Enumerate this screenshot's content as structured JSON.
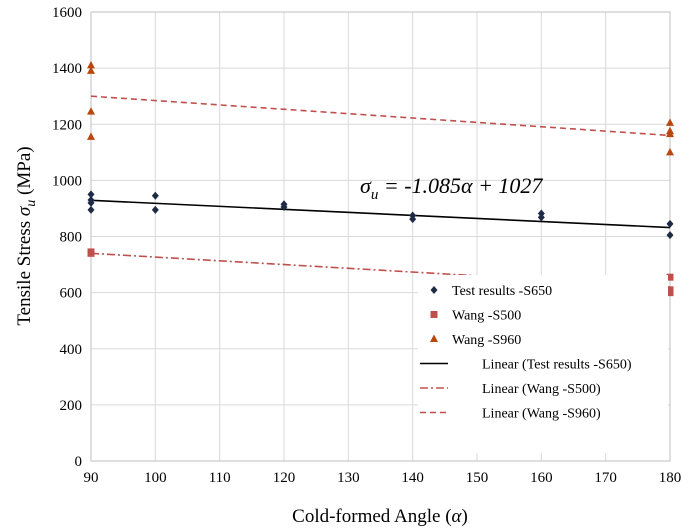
{
  "chart_data": {
    "type": "scatter",
    "xlabel": {
      "text": "Cold-formed Angle ",
      "symbol": "α",
      "open": "(",
      "close": ")"
    },
    "ylabel": {
      "text": "Tensile Stress ",
      "symbol": "σ",
      "sub": "u",
      "unit": " (MPa)"
    },
    "equation": {
      "lhs": "σ",
      "sub": "u",
      "rhs": " = -1.085α + 1027"
    },
    "xlim": [
      90,
      180
    ],
    "ylim": [
      0,
      1600
    ],
    "x_ticks": [
      90,
      100,
      110,
      120,
      130,
      140,
      150,
      160,
      170,
      180
    ],
    "y_ticks": [
      0,
      200,
      400,
      600,
      800,
      1000,
      1200,
      1400,
      1600
    ],
    "grid": true,
    "legend_position": "bottom-right",
    "series": [
      {
        "name": "Test results -S650",
        "marker": "diamond",
        "color": "#1f2a44",
        "points": [
          [
            90,
            950
          ],
          [
            90,
            930
          ],
          [
            90,
            920
          ],
          [
            90,
            895
          ],
          [
            100,
            945
          ],
          [
            100,
            895
          ],
          [
            120,
            915
          ],
          [
            120,
            905
          ],
          [
            140,
            875
          ],
          [
            140,
            862
          ],
          [
            160,
            882
          ],
          [
            160,
            868
          ],
          [
            180,
            845
          ],
          [
            180,
            805
          ]
        ]
      },
      {
        "name": "Wang -S500",
        "marker": "square",
        "color": "#c0504d",
        "points": [
          [
            90,
            745
          ],
          [
            90,
            740
          ],
          [
            180,
            655
          ],
          [
            180,
            610
          ],
          [
            180,
            600
          ]
        ]
      },
      {
        "name": "Wang -S960",
        "marker": "triangle",
        "color": "#b8480f",
        "points": [
          [
            90,
            1410
          ],
          [
            90,
            1390
          ],
          [
            90,
            1245
          ],
          [
            90,
            1155
          ],
          [
            180,
            1205
          ],
          [
            180,
            1175
          ],
          [
            180,
            1165
          ],
          [
            180,
            1100
          ]
        ]
      }
    ],
    "trendlines": [
      {
        "name": "Linear  (Test results -S650)",
        "style": "solid",
        "color": "#000000",
        "from": [
          90,
          929
        ],
        "to": [
          180,
          832
        ]
      },
      {
        "name": "Linear  (Wang -S500)",
        "style": "dashdot",
        "color": "#c0504d",
        "from": [
          90,
          740
        ],
        "to": [
          180,
          620
        ]
      },
      {
        "name": "Linear  (Wang -S960)",
        "style": "dashed",
        "color": "#c0504d",
        "from": [
          90,
          1300
        ],
        "to": [
          180,
          1160
        ]
      }
    ]
  }
}
